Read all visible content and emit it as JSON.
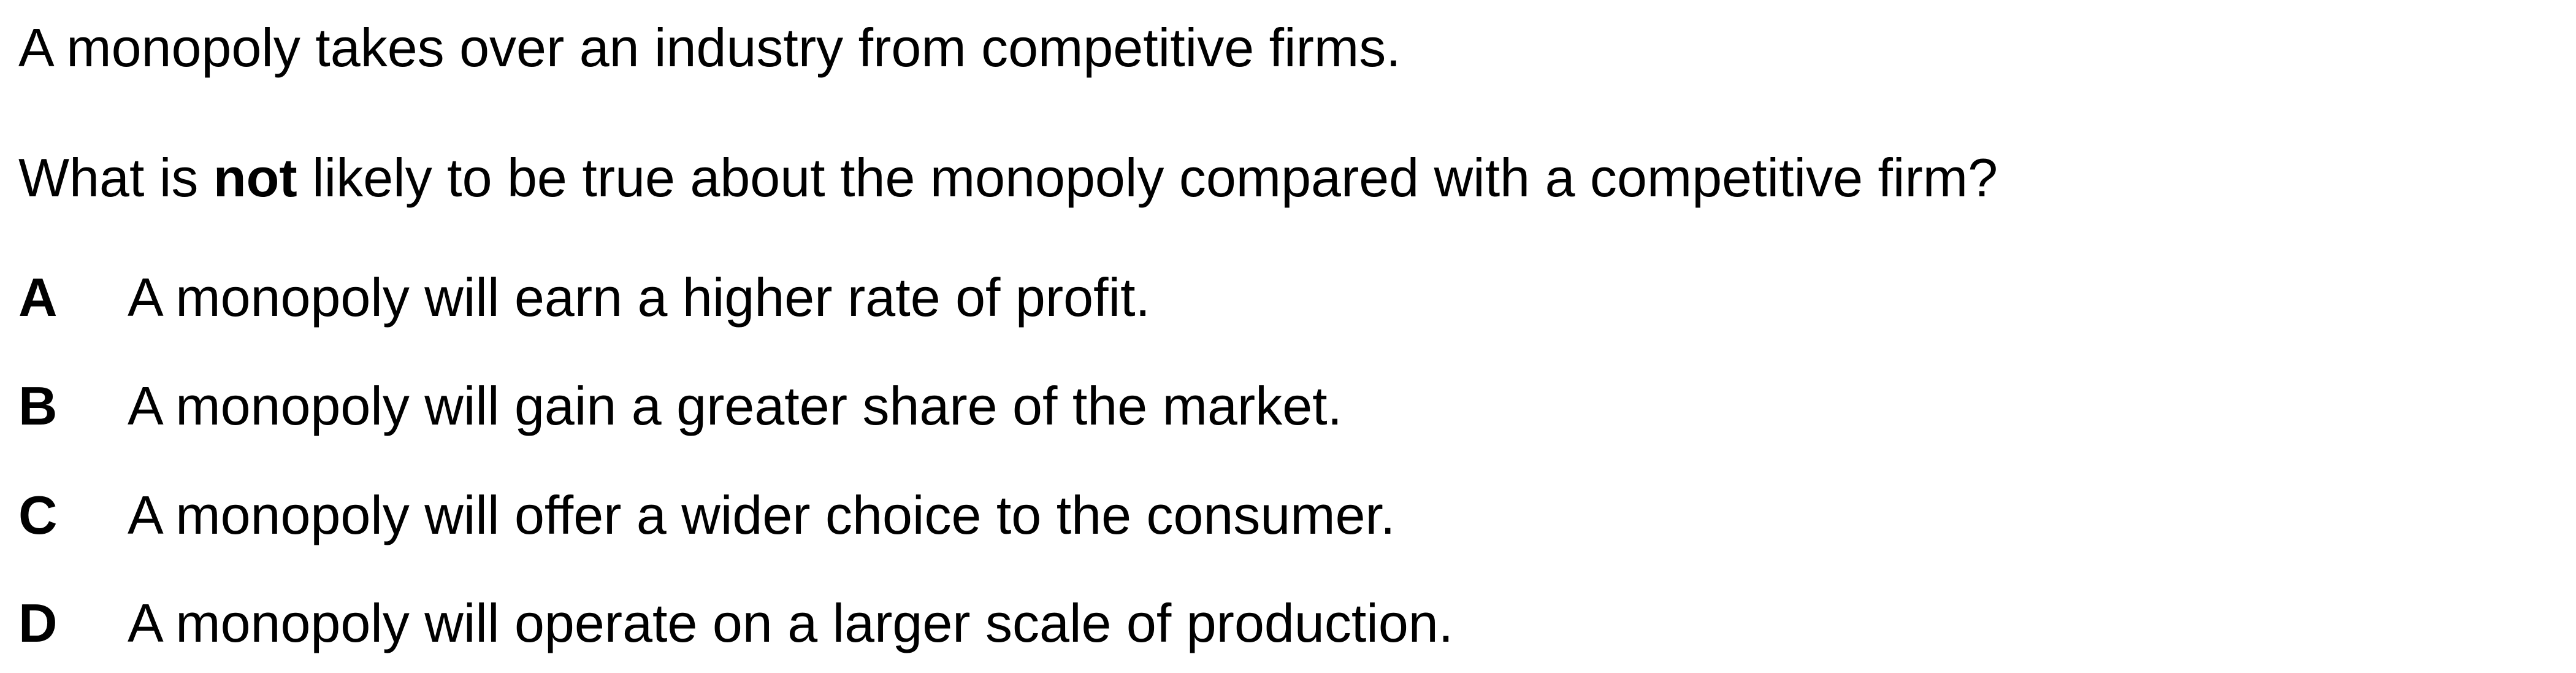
{
  "stem": "A monopoly takes over an industry from competitive firms.",
  "question": {
    "before": "What is ",
    "emphasis": "not",
    "after": " likely to be true about the monopoly compared with a competitive firm?"
  },
  "options": [
    {
      "letter": "A",
      "text": "A monopoly will earn a higher rate of profit."
    },
    {
      "letter": "B",
      "text": "A monopoly will gain a greater share of the market."
    },
    {
      "letter": "C",
      "text": "A monopoly will offer a wider choice to the consumer."
    },
    {
      "letter": "D",
      "text": "A monopoly will operate on a larger scale of production."
    }
  ]
}
